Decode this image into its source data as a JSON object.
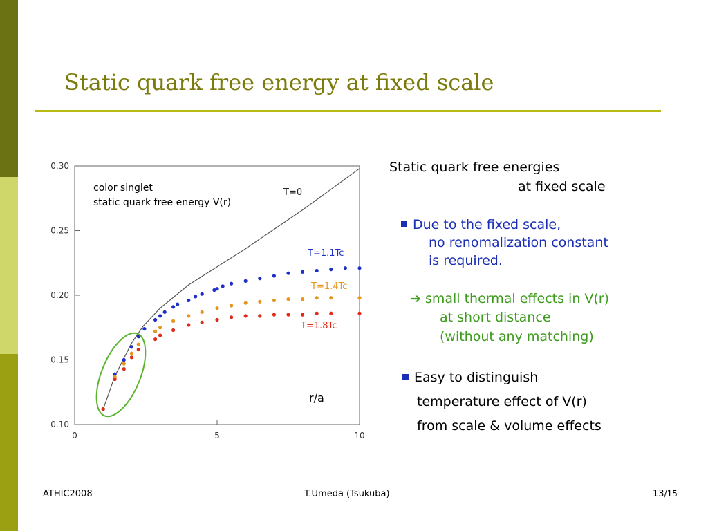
{
  "slide": {
    "title": "Static quark free energy at fixed scale",
    "colors": {
      "sidebar": [
        "#6b7214",
        "#cfd66a",
        "#9aa012"
      ],
      "title": "#7b7b0c",
      "rule": "#b9b913",
      "bullet_text": "#1b2fb5",
      "arrow_text": "#3d9b1d"
    }
  },
  "chart_data": {
    "type": "scatter",
    "xlim": [
      0,
      10
    ],
    "ylim": [
      0.1,
      0.3
    ],
    "xticks": [
      "0",
      "5",
      "10"
    ],
    "yticks": [
      "0.10",
      "0.15",
      "0.20",
      "0.25",
      "0.30"
    ],
    "xlabel": "r/a",
    "annotation": [
      "color singlet",
      "static quark free energy V(r)"
    ],
    "grid": false,
    "series": [
      {
        "name": "T=0",
        "kind": "line",
        "color": "#555555",
        "points": [
          [
            1.0,
            0.112
          ],
          [
            1.2,
            0.124
          ],
          [
            1.4,
            0.137
          ],
          [
            1.7,
            0.15
          ],
          [
            2.0,
            0.163
          ],
          [
            2.4,
            0.176
          ],
          [
            3.0,
            0.19
          ],
          [
            4.0,
            0.208
          ],
          [
            5.0,
            0.222
          ],
          [
            6.0,
            0.236
          ],
          [
            7.0,
            0.251
          ],
          [
            8.0,
            0.266
          ],
          [
            9.0,
            0.282
          ],
          [
            10.0,
            0.298
          ]
        ]
      },
      {
        "name": "T=1.1Tc",
        "kind": "points",
        "color": "#1f2fc8",
        "points": [
          [
            1.0,
            0.112
          ],
          [
            1.41,
            0.139
          ],
          [
            1.73,
            0.15
          ],
          [
            2.0,
            0.16
          ],
          [
            2.24,
            0.168
          ],
          [
            2.45,
            0.174
          ],
          [
            2.83,
            0.181
          ],
          [
            3.0,
            0.184
          ],
          [
            3.16,
            0.187
          ],
          [
            3.46,
            0.191
          ],
          [
            3.61,
            0.193
          ],
          [
            4.0,
            0.196
          ],
          [
            4.24,
            0.199
          ],
          [
            4.47,
            0.201
          ],
          [
            4.9,
            0.204
          ],
          [
            5.0,
            0.205
          ],
          [
            5.2,
            0.207
          ],
          [
            5.5,
            0.209
          ],
          [
            6.0,
            0.211
          ],
          [
            6.5,
            0.213
          ],
          [
            7.0,
            0.215
          ],
          [
            7.5,
            0.217
          ],
          [
            8.0,
            0.218
          ],
          [
            8.5,
            0.219
          ],
          [
            9.0,
            0.22
          ],
          [
            9.5,
            0.221
          ],
          [
            10.0,
            0.221
          ]
        ]
      },
      {
        "name": "T=1.4Tc",
        "kind": "points",
        "color": "#e6951f",
        "points": [
          [
            1.0,
            0.112
          ],
          [
            1.41,
            0.137
          ],
          [
            1.73,
            0.147
          ],
          [
            2.0,
            0.155
          ],
          [
            2.24,
            0.162
          ],
          [
            2.83,
            0.172
          ],
          [
            3.0,
            0.175
          ],
          [
            3.46,
            0.18
          ],
          [
            4.0,
            0.184
          ],
          [
            4.47,
            0.187
          ],
          [
            5.0,
            0.19
          ],
          [
            5.5,
            0.192
          ],
          [
            6.0,
            0.194
          ],
          [
            6.5,
            0.195
          ],
          [
            7.0,
            0.196
          ],
          [
            7.5,
            0.197
          ],
          [
            8.0,
            0.197
          ],
          [
            8.5,
            0.198
          ],
          [
            9.0,
            0.198
          ],
          [
            10.0,
            0.198
          ]
        ]
      },
      {
        "name": "T=1.8Tc",
        "kind": "points",
        "color": "#e02a1a",
        "points": [
          [
            1.0,
            0.112
          ],
          [
            1.41,
            0.135
          ],
          [
            1.73,
            0.143
          ],
          [
            2.0,
            0.152
          ],
          [
            2.24,
            0.158
          ],
          [
            2.83,
            0.166
          ],
          [
            3.0,
            0.169
          ],
          [
            3.46,
            0.173
          ],
          [
            4.0,
            0.177
          ],
          [
            4.47,
            0.179
          ],
          [
            5.0,
            0.181
          ],
          [
            5.5,
            0.183
          ],
          [
            6.0,
            0.184
          ],
          [
            6.5,
            0.184
          ],
          [
            7.0,
            0.185
          ],
          [
            7.5,
            0.185
          ],
          [
            8.0,
            0.185
          ],
          [
            8.5,
            0.186
          ],
          [
            9.0,
            0.186
          ],
          [
            10.0,
            0.186
          ]
        ]
      }
    ],
    "highlight": {
      "shape": "ellipse",
      "color": "#5cb52e",
      "region": "short distance, r/a 1 to 2.3"
    }
  },
  "text": {
    "heading_line1": "Static quark free energies",
    "heading_line2": "at fixed scale",
    "b1_line1": "Due to the fixed scale,",
    "b1_line2": "no renomalization constant",
    "b1_line3": "is required.",
    "arrow_line1": "➔ small thermal effects in V(r)",
    "arrow_line2": "at short distance",
    "arrow_line3": "(without any matching)",
    "b2_line1": "Easy to distinguish",
    "b2_line2": "temperature effect of V(r)",
    "b2_line3": "from scale & volume effects"
  },
  "footer": {
    "left": "ATHIC2008",
    "center": "T.Umeda (Tsukuba)",
    "page": "13",
    "total": "/15"
  }
}
